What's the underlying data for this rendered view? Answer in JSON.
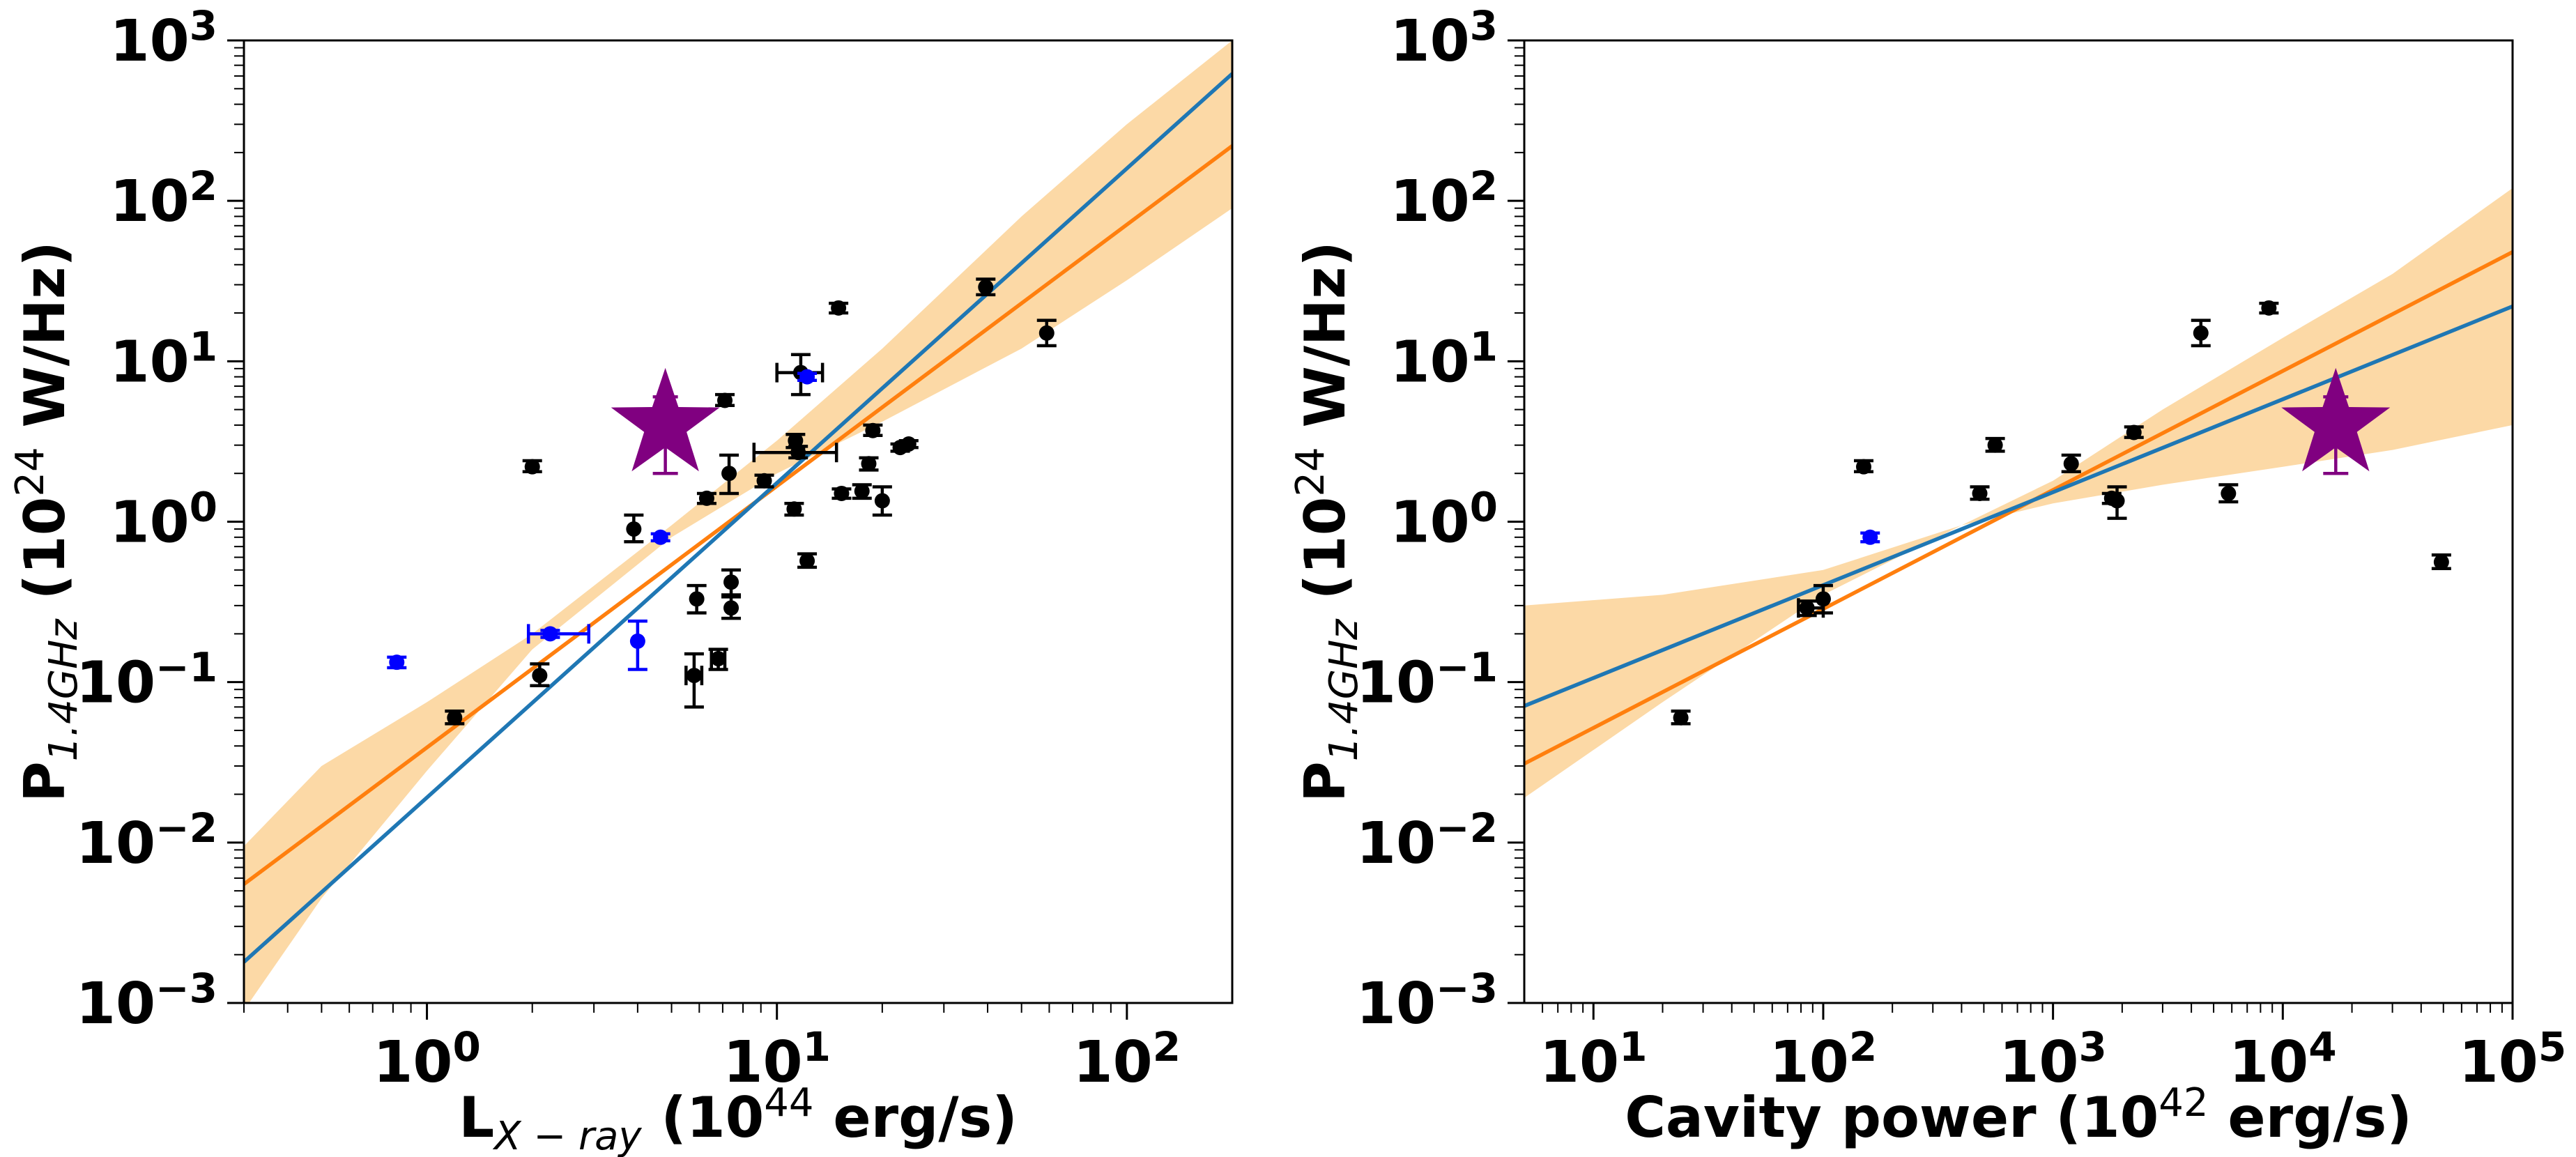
{
  "colors": {
    "black_points": "#000000",
    "blue_points": "#0000ff",
    "target_star": "#800080",
    "fit_orange": "#ff7f0e",
    "fit_blue": "#1f77b4",
    "confidence_band": "#fcd9a6"
  },
  "chart_data": [
    {
      "type": "scatter",
      "scale": "log-log",
      "xlabel": {
        "main": "L",
        "sub": "X − ray",
        "open": " (10",
        "sup": "44",
        "close": " erg/s)"
      },
      "ylabel": {
        "main": "P",
        "sub": "1.4GHz",
        "open": " (10",
        "sup": "24",
        "close": " W/Hz)"
      },
      "xlim": [
        0.3,
        200
      ],
      "ylim": [
        0.001,
        1000
      ],
      "xticks": [
        {
          "value": 1,
          "base": "10",
          "exp": "0"
        },
        {
          "value": 10,
          "base": "10",
          "exp": "1"
        },
        {
          "value": 100,
          "base": "10",
          "exp": "2"
        }
      ],
      "yticks": [
        {
          "value": 0.001,
          "base": "10",
          "exp": "−3"
        },
        {
          "value": 0.01,
          "base": "10",
          "exp": "−2"
        },
        {
          "value": 0.1,
          "base": "10",
          "exp": "−1"
        },
        {
          "value": 1,
          "base": "10",
          "exp": "0"
        },
        {
          "value": 10,
          "base": "10",
          "exp": "1"
        },
        {
          "value": 100,
          "base": "10",
          "exp": "2"
        },
        {
          "value": 1000,
          "base": "10",
          "exp": "3"
        }
      ],
      "series": [
        {
          "name": "black",
          "color": "#000000",
          "marker": "circle",
          "points": [
            {
              "x": 1.2,
              "y": 0.06,
              "ylo": 0.055,
              "yhi": 0.066
            },
            {
              "x": 2.0,
              "y": 2.2,
              "ylo": 2.05,
              "yhi": 2.4
            },
            {
              "x": 2.1,
              "y": 0.11,
              "ylo": 0.095,
              "yhi": 0.13
            },
            {
              "x": 3.9,
              "y": 0.9,
              "ylo": 0.75,
              "yhi": 1.1
            },
            {
              "x": 5.9,
              "y": 0.33,
              "ylo": 0.27,
              "yhi": 0.4
            },
            {
              "x": 5.8,
              "y": 0.11,
              "ylo": 0.07,
              "yhi": 0.15,
              "xlo": 5.5,
              "xhi": 6.1
            },
            {
              "x": 6.3,
              "y": 1.4,
              "ylo": 1.3,
              "yhi": 1.5
            },
            {
              "x": 6.8,
              "y": 0.14,
              "ylo": 0.12,
              "yhi": 0.16,
              "xlo": 6.5,
              "xhi": 7.1
            },
            {
              "x": 7.1,
              "y": 5.7,
              "ylo": 5.3,
              "yhi": 6.2
            },
            {
              "x": 7.3,
              "y": 2.0,
              "ylo": 1.5,
              "yhi": 2.6
            },
            {
              "x": 7.4,
              "y": 0.42,
              "ylo": 0.35,
              "yhi": 0.5
            },
            {
              "x": 7.4,
              "y": 0.29,
              "ylo": 0.25,
              "yhi": 0.34
            },
            {
              "x": 9.2,
              "y": 1.8,
              "ylo": 1.65,
              "yhi": 1.95
            },
            {
              "x": 11.2,
              "y": 1.2,
              "ylo": 1.1,
              "yhi": 1.3
            },
            {
              "x": 11.3,
              "y": 3.2,
              "ylo": 2.9,
              "yhi": 3.5
            },
            {
              "x": 11.5,
              "y": 2.7,
              "ylo": 2.5,
              "yhi": 2.95,
              "xlo": 8.6,
              "xhi": 14.8
            },
            {
              "x": 11.7,
              "y": 8.5,
              "ylo": 6.2,
              "yhi": 11.0,
              "xlo": 10.0,
              "xhi": 13.5
            },
            {
              "x": 12.2,
              "y": 0.57,
              "ylo": 0.52,
              "yhi": 0.63
            },
            {
              "x": 15.0,
              "y": 21.5,
              "ylo": 20.0,
              "yhi": 23.0
            },
            {
              "x": 15.3,
              "y": 1.5,
              "ylo": 1.4,
              "yhi": 1.6
            },
            {
              "x": 17.5,
              "y": 1.55,
              "ylo": 1.4,
              "yhi": 1.7
            },
            {
              "x": 18.3,
              "y": 2.3,
              "ylo": 2.1,
              "yhi": 2.5
            },
            {
              "x": 18.8,
              "y": 3.7,
              "ylo": 3.45,
              "yhi": 4.0
            },
            {
              "x": 20.0,
              "y": 1.35,
              "ylo": 1.1,
              "yhi": 1.65
            },
            {
              "x": 22.5,
              "y": 2.9,
              "ylo": 2.75,
              "yhi": 3.05
            },
            {
              "x": 23.8,
              "y": 3.05,
              "ylo": 2.9,
              "yhi": 3.2
            },
            {
              "x": 39.5,
              "y": 29.0,
              "ylo": 26.0,
              "yhi": 32.5
            },
            {
              "x": 59.0,
              "y": 15.0,
              "ylo": 12.5,
              "yhi": 18.0
            }
          ]
        },
        {
          "name": "blue",
          "color": "#0000ff",
          "marker": "circle",
          "points": [
            {
              "x": 0.82,
              "y": 0.133,
              "ylo": 0.123,
              "yhi": 0.143
            },
            {
              "x": 2.25,
              "y": 0.2,
              "ylo": 0.19,
              "yhi": 0.21,
              "xlo": 1.95,
              "xhi": 2.9
            },
            {
              "x": 4.0,
              "y": 0.18,
              "ylo": 0.12,
              "yhi": 0.24
            },
            {
              "x": 4.65,
              "y": 0.8,
              "ylo": 0.76,
              "yhi": 0.84
            },
            {
              "x": 12.2,
              "y": 8.0,
              "ylo": 7.6,
              "yhi": 8.4
            }
          ]
        },
        {
          "name": "target",
          "color": "#800080",
          "marker": "star",
          "points": [
            {
              "x": 4.8,
              "y": 4.0,
              "ylo": 2.0,
              "yhi": 6.0
            }
          ]
        }
      ],
      "fits": [
        {
          "name": "orange",
          "color": "#ff7f0e",
          "x": [
            0.3,
            200
          ],
          "y": [
            0.0055,
            220
          ]
        },
        {
          "name": "blue",
          "color": "#1f77b4",
          "x": [
            0.3,
            200
          ],
          "y": [
            0.0018,
            620
          ]
        }
      ],
      "band": {
        "color": "#fcd9a6",
        "x": [
          0.3,
          0.5,
          1,
          2,
          5,
          10,
          20,
          50,
          100,
          200
        ],
        "ylo": [
          0.0009,
          0.0045,
          0.028,
          0.16,
          0.8,
          2.0,
          4.2,
          12,
          32,
          90
        ],
        "yhi": [
          0.0095,
          0.03,
          0.075,
          0.2,
          0.95,
          3.2,
          12,
          80,
          300,
          1000
        ]
      }
    },
    {
      "type": "scatter",
      "scale": "log-log",
      "xlabel": {
        "main": "Cavity power",
        "sub": "",
        "open": " (10",
        "sup": "42",
        "close": " erg/s)"
      },
      "ylabel": {
        "main": "P",
        "sub": "1.4GHz",
        "open": " (10",
        "sup": "24",
        "close": " W/Hz)"
      },
      "xlim": [
        5,
        100000
      ],
      "ylim": [
        0.001,
        1000
      ],
      "xticks": [
        {
          "value": 10,
          "base": "10",
          "exp": "1"
        },
        {
          "value": 100,
          "base": "10",
          "exp": "2"
        },
        {
          "value": 1000,
          "base": "10",
          "exp": "3"
        },
        {
          "value": 10000,
          "base": "10",
          "exp": "4"
        },
        {
          "value": 100000,
          "base": "10",
          "exp": "5"
        }
      ],
      "yticks": [
        {
          "value": 0.001,
          "base": "10",
          "exp": "−3"
        },
        {
          "value": 0.01,
          "base": "10",
          "exp": "−2"
        },
        {
          "value": 0.1,
          "base": "10",
          "exp": "−1"
        },
        {
          "value": 1,
          "base": "10",
          "exp": "0"
        },
        {
          "value": 10,
          "base": "10",
          "exp": "1"
        },
        {
          "value": 100,
          "base": "10",
          "exp": "2"
        },
        {
          "value": 1000,
          "base": "10",
          "exp": "3"
        }
      ],
      "series": [
        {
          "name": "black",
          "color": "#000000",
          "marker": "circle",
          "points": [
            {
              "x": 24,
              "y": 0.06,
              "ylo": 0.055,
              "yhi": 0.066
            },
            {
              "x": 85,
              "y": 0.29,
              "ylo": 0.26,
              "yhi": 0.32,
              "xlo": 78,
              "xhi": 100
            },
            {
              "x": 100,
              "y": 0.33,
              "ylo": 0.27,
              "yhi": 0.4
            },
            {
              "x": 150,
              "y": 2.2,
              "ylo": 2.05,
              "yhi": 2.4
            },
            {
              "x": 480,
              "y": 1.5,
              "ylo": 1.38,
              "yhi": 1.65
            },
            {
              "x": 560,
              "y": 3.0,
              "ylo": 2.75,
              "yhi": 3.3
            },
            {
              "x": 1200,
              "y": 2.3,
              "ylo": 2.05,
              "yhi": 2.6
            },
            {
              "x": 1800,
              "y": 1.4,
              "ylo": 1.3,
              "yhi": 1.5
            },
            {
              "x": 1900,
              "y": 1.35,
              "ylo": 1.05,
              "yhi": 1.65
            },
            {
              "x": 2250,
              "y": 3.6,
              "ylo": 3.35,
              "yhi": 3.9
            },
            {
              "x": 4400,
              "y": 15.0,
              "ylo": 12.5,
              "yhi": 18.0
            },
            {
              "x": 5800,
              "y": 1.5,
              "ylo": 1.33,
              "yhi": 1.7
            },
            {
              "x": 8700,
              "y": 21.5,
              "ylo": 20.0,
              "yhi": 23.0
            },
            {
              "x": 49000,
              "y": 0.56,
              "ylo": 0.51,
              "yhi": 0.62
            }
          ]
        },
        {
          "name": "blue",
          "color": "#0000ff",
          "marker": "circle",
          "points": [
            {
              "x": 160,
              "y": 0.8,
              "ylo": 0.75,
              "yhi": 0.85
            }
          ]
        },
        {
          "name": "target",
          "color": "#800080",
          "marker": "star",
          "points": [
            {
              "x": 17000,
              "y": 4.0,
              "ylo": 2.0,
              "yhi": 6.0
            }
          ]
        }
      ],
      "fits": [
        {
          "name": "orange",
          "color": "#ff7f0e",
          "x": [
            5,
            100000
          ],
          "y": [
            0.031,
            48
          ]
        },
        {
          "name": "blue",
          "color": "#1f77b4",
          "x": [
            5,
            100000
          ],
          "y": [
            0.071,
            22
          ]
        }
      ],
      "band": {
        "color": "#fcd9a6",
        "x": [
          5,
          20,
          100,
          400,
          1000,
          3000,
          10000,
          30000,
          100000
        ],
        "ylo": [
          0.019,
          0.075,
          0.35,
          0.95,
          1.3,
          1.7,
          2.2,
          2.8,
          4.0
        ],
        "yhi": [
          0.3,
          0.35,
          0.5,
          0.95,
          1.8,
          5.0,
          14,
          35,
          120
        ]
      }
    }
  ]
}
